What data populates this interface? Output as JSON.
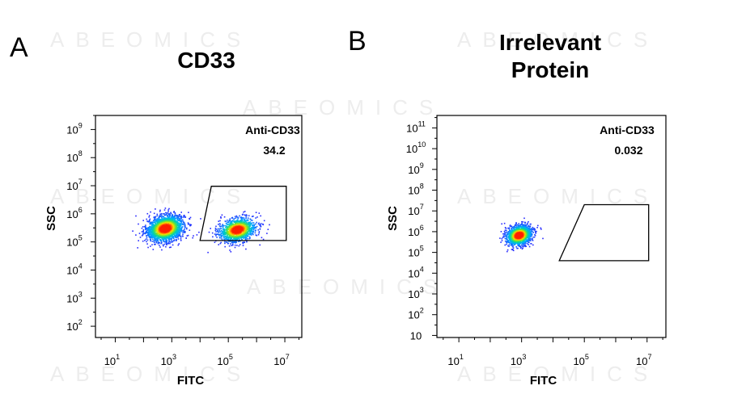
{
  "panels": {
    "A": {
      "letter": "A",
      "title_lines": [
        "CD33"
      ]
    },
    "B": {
      "letter": "B",
      "title_lines": [
        "Irrelevant",
        "Protein"
      ]
    }
  },
  "watermark": "ABEOMICS",
  "colors": {
    "density_low": "#2a2aff",
    "density_mid": "#00c8c8",
    "density_high": "#ff2a00",
    "frame": "#000000"
  },
  "chart_data": [
    {
      "type": "scatter",
      "subtype": "flow-cytometry density dot plot",
      "title": "CD33",
      "xlabel": "FITC",
      "ylabel": "SSC",
      "xscale": "log",
      "yscale": "log",
      "xlim_log10": [
        0.3,
        7.6
      ],
      "ylim_log10": [
        1.6,
        9.5
      ],
      "x_ticks": [
        {
          "base": "10",
          "exp": "1",
          "log": 1
        },
        {
          "base": "10",
          "exp": "3",
          "log": 3
        },
        {
          "base": "10",
          "exp": "5",
          "log": 5
        },
        {
          "base": "10",
          "exp": "7",
          "log": 7
        }
      ],
      "y_ticks": [
        {
          "base": "10",
          "exp": "2",
          "log": 2
        },
        {
          "base": "10",
          "exp": "3",
          "log": 3
        },
        {
          "base": "10",
          "exp": "4",
          "log": 4
        },
        {
          "base": "10",
          "exp": "5",
          "log": 5
        },
        {
          "base": "10",
          "exp": "6",
          "log": 6
        },
        {
          "base": "10",
          "exp": "7",
          "log": 7
        },
        {
          "base": "10",
          "exp": "8",
          "log": 8
        },
        {
          "base": "10",
          "exp": "9",
          "log": 9
        }
      ],
      "gate": {
        "label": "Anti-CD33",
        "value": "34.2",
        "polygon_log10": [
          [
            4.0,
            5.05
          ],
          [
            4.4,
            6.98
          ],
          [
            7.05,
            6.98
          ],
          [
            7.05,
            5.05
          ]
        ]
      },
      "populations": [
        {
          "center_log10": [
            2.75,
            5.5
          ],
          "spread_log10": [
            0.55,
            0.38
          ],
          "share": 0.62
        },
        {
          "center_log10": [
            5.3,
            5.45
          ],
          "spread_log10": [
            0.55,
            0.35
          ],
          "share": 0.38
        }
      ]
    },
    {
      "type": "scatter",
      "subtype": "flow-cytometry density dot plot",
      "title": "Irrelevant Protein",
      "xlabel": "FITC",
      "ylabel": "SSC",
      "xscale": "log",
      "yscale": "log",
      "xlim_log10": [
        0.3,
        7.6
      ],
      "ylim_log10": [
        0.9,
        11.6
      ],
      "x_ticks": [
        {
          "base": "10",
          "exp": "1",
          "log": 1
        },
        {
          "base": "10",
          "exp": "3",
          "log": 3
        },
        {
          "base": "10",
          "exp": "5",
          "log": 5
        },
        {
          "base": "10",
          "exp": "7",
          "log": 7
        }
      ],
      "y_ticks": [
        {
          "base": "10",
          "exp": "",
          "log": 1
        },
        {
          "base": "10",
          "exp": "2",
          "log": 2
        },
        {
          "base": "10",
          "exp": "3",
          "log": 3
        },
        {
          "base": "10",
          "exp": "4",
          "log": 4
        },
        {
          "base": "10",
          "exp": "5",
          "log": 5
        },
        {
          "base": "10",
          "exp": "6",
          "log": 6
        },
        {
          "base": "10",
          "exp": "7",
          "log": 7
        },
        {
          "base": "10",
          "exp": "8",
          "log": 8
        },
        {
          "base": "10",
          "exp": "9",
          "log": 9
        },
        {
          "base": "10",
          "exp": "10",
          "log": 10
        },
        {
          "base": "10",
          "exp": "11",
          "log": 11
        }
      ],
      "gate": {
        "label": "Anti-CD33",
        "value": "0.032",
        "polygon_log10": [
          [
            4.2,
            4.6
          ],
          [
            5.0,
            7.3
          ],
          [
            7.05,
            7.3
          ],
          [
            7.05,
            4.6
          ]
        ]
      },
      "populations": [
        {
          "center_log10": [
            2.9,
            5.85
          ],
          "spread_log10": [
            0.35,
            0.4
          ],
          "share": 1.0
        }
      ]
    }
  ]
}
